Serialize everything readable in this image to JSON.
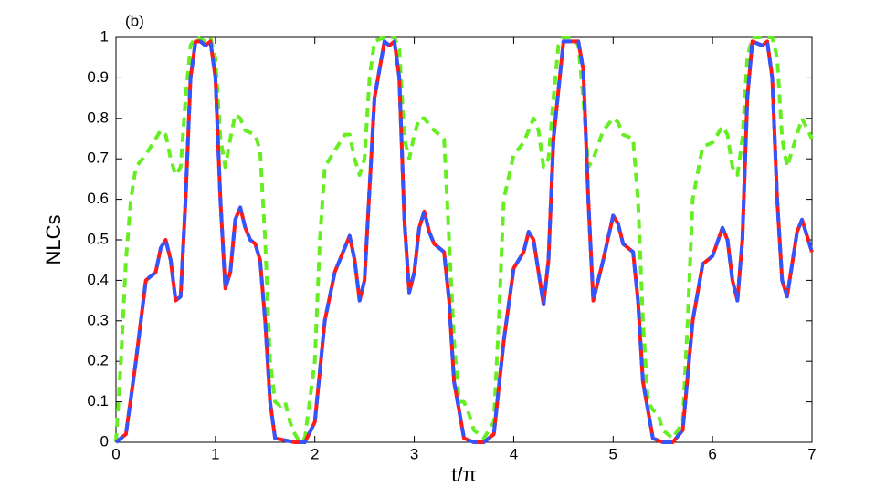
{
  "chart_data": {
    "type": "line",
    "annotation": "(b)",
    "xlabel": "t/π",
    "ylabel": "NLCs",
    "xlim": [
      0,
      7
    ],
    "xticks": [
      0,
      1,
      2,
      3,
      4,
      5,
      6,
      7
    ],
    "ylim": [
      0,
      1
    ],
    "yticks": [
      0,
      0.1,
      0.2,
      0.3,
      0.4,
      0.5,
      0.6,
      0.7,
      0.8,
      0.9,
      1
    ],
    "grid": false,
    "series": [
      {
        "color": "#ff1a1a",
        "dashed": false,
        "x": [
          0,
          0.1,
          0.2,
          0.3,
          0.4,
          0.45,
          0.5,
          0.55,
          0.6,
          0.65,
          0.7,
          0.75,
          0.8,
          0.85,
          0.9,
          0.95,
          1.0,
          1.05,
          1.1,
          1.15,
          1.2,
          1.25,
          1.3,
          1.35,
          1.4,
          1.45,
          1.5,
          1.55,
          1.6,
          1.7,
          1.8,
          1.9,
          2.0,
          2.1,
          2.2,
          2.3,
          2.35,
          2.4,
          2.45,
          2.5,
          2.6,
          2.7,
          2.75,
          2.8,
          2.85,
          2.9,
          2.95,
          3.0,
          3.05,
          3.1,
          3.15,
          3.2,
          3.3,
          3.35,
          3.4,
          3.5,
          3.6,
          3.7,
          3.8,
          3.9,
          4.0,
          4.1,
          4.15,
          4.2,
          4.3,
          4.35,
          4.4,
          4.5,
          4.6,
          4.65,
          4.7,
          4.75,
          4.8,
          4.9,
          5.0,
          5.05,
          5.1,
          5.2,
          5.25,
          5.3,
          5.4,
          5.5,
          5.6,
          5.7,
          5.8,
          5.9,
          6.0,
          6.1,
          6.15,
          6.2,
          6.25,
          6.3,
          6.35,
          6.4,
          6.5,
          6.55,
          6.6,
          6.65,
          6.7,
          6.75,
          6.85,
          6.9,
          7.0
        ],
        "values": [
          0,
          0.02,
          0.2,
          0.4,
          0.42,
          0.48,
          0.5,
          0.45,
          0.35,
          0.36,
          0.6,
          0.9,
          0.99,
          0.99,
          0.98,
          0.99,
          0.9,
          0.6,
          0.38,
          0.42,
          0.55,
          0.58,
          0.53,
          0.5,
          0.49,
          0.45,
          0.3,
          0.1,
          0.01,
          0.005,
          0,
          0,
          0.05,
          0.3,
          0.42,
          0.48,
          0.51,
          0.45,
          0.35,
          0.4,
          0.85,
          0.99,
          0.98,
          0.99,
          0.9,
          0.55,
          0.37,
          0.42,
          0.53,
          0.57,
          0.52,
          0.49,
          0.47,
          0.35,
          0.15,
          0.01,
          0,
          0,
          0.02,
          0.25,
          0.43,
          0.47,
          0.52,
          0.5,
          0.34,
          0.45,
          0.75,
          0.99,
          0.99,
          0.99,
          0.92,
          0.6,
          0.35,
          0.45,
          0.56,
          0.54,
          0.49,
          0.47,
          0.35,
          0.15,
          0.01,
          0,
          0,
          0.03,
          0.3,
          0.44,
          0.46,
          0.53,
          0.5,
          0.4,
          0.35,
          0.5,
          0.85,
          0.99,
          0.98,
          0.99,
          0.9,
          0.6,
          0.4,
          0.36,
          0.52,
          0.55,
          0.47
        ]
      },
      {
        "color": "#3355ff",
        "dashed": true,
        "x": [
          0,
          0.1,
          0.2,
          0.3,
          0.4,
          0.45,
          0.5,
          0.55,
          0.6,
          0.65,
          0.7,
          0.75,
          0.8,
          0.85,
          0.9,
          0.95,
          1.0,
          1.05,
          1.1,
          1.15,
          1.2,
          1.25,
          1.3,
          1.35,
          1.4,
          1.45,
          1.5,
          1.55,
          1.6,
          1.7,
          1.8,
          1.9,
          2.0,
          2.1,
          2.2,
          2.3,
          2.35,
          2.4,
          2.45,
          2.5,
          2.6,
          2.7,
          2.75,
          2.8,
          2.85,
          2.9,
          2.95,
          3.0,
          3.05,
          3.1,
          3.15,
          3.2,
          3.3,
          3.35,
          3.4,
          3.5,
          3.6,
          3.7,
          3.8,
          3.9,
          4.0,
          4.1,
          4.15,
          4.2,
          4.3,
          4.35,
          4.4,
          4.5,
          4.6,
          4.65,
          4.7,
          4.75,
          4.8,
          4.9,
          5.0,
          5.05,
          5.1,
          5.2,
          5.25,
          5.3,
          5.4,
          5.5,
          5.6,
          5.7,
          5.8,
          5.9,
          6.0,
          6.1,
          6.15,
          6.2,
          6.25,
          6.3,
          6.35,
          6.4,
          6.5,
          6.55,
          6.6,
          6.65,
          6.7,
          6.75,
          6.85,
          6.9,
          7.0
        ],
        "values": [
          0,
          0.02,
          0.2,
          0.4,
          0.42,
          0.48,
          0.5,
          0.45,
          0.35,
          0.36,
          0.6,
          0.9,
          0.99,
          0.99,
          0.98,
          0.99,
          0.9,
          0.6,
          0.38,
          0.42,
          0.55,
          0.58,
          0.53,
          0.5,
          0.49,
          0.45,
          0.3,
          0.1,
          0.01,
          0.005,
          0,
          0,
          0.05,
          0.3,
          0.42,
          0.48,
          0.51,
          0.45,
          0.35,
          0.4,
          0.85,
          0.99,
          0.98,
          0.99,
          0.9,
          0.55,
          0.37,
          0.42,
          0.53,
          0.57,
          0.52,
          0.49,
          0.47,
          0.35,
          0.15,
          0.01,
          0,
          0,
          0.02,
          0.25,
          0.43,
          0.47,
          0.52,
          0.5,
          0.34,
          0.45,
          0.75,
          0.99,
          0.99,
          0.99,
          0.92,
          0.6,
          0.35,
          0.45,
          0.56,
          0.54,
          0.49,
          0.47,
          0.35,
          0.15,
          0.01,
          0,
          0,
          0.03,
          0.3,
          0.44,
          0.46,
          0.53,
          0.5,
          0.4,
          0.35,
          0.5,
          0.85,
          0.99,
          0.98,
          0.99,
          0.9,
          0.6,
          0.4,
          0.36,
          0.52,
          0.55,
          0.47
        ]
      },
      {
        "color": "#66ee22",
        "dashed": true,
        "x": [
          0,
          0.05,
          0.1,
          0.15,
          0.2,
          0.3,
          0.4,
          0.45,
          0.5,
          0.55,
          0.6,
          0.65,
          0.7,
          0.75,
          0.8,
          0.9,
          0.95,
          1.0,
          1.05,
          1.1,
          1.15,
          1.2,
          1.25,
          1.3,
          1.4,
          1.45,
          1.5,
          1.55,
          1.6,
          1.65,
          1.7,
          1.75,
          1.8,
          1.85,
          1.9,
          2.0,
          2.05,
          2.1,
          2.2,
          2.3,
          2.35,
          2.4,
          2.45,
          2.5,
          2.55,
          2.6,
          2.7,
          2.8,
          2.85,
          2.9,
          2.95,
          3.0,
          3.05,
          3.1,
          3.2,
          3.3,
          3.35,
          3.4,
          3.45,
          3.5,
          3.55,
          3.6,
          3.7,
          3.8,
          3.85,
          3.9,
          4.0,
          4.1,
          4.2,
          4.25,
          4.3,
          4.35,
          4.4,
          4.45,
          4.5,
          4.6,
          4.65,
          4.7,
          4.75,
          4.8,
          4.9,
          5.0,
          5.05,
          5.1,
          5.2,
          5.25,
          5.3,
          5.35,
          5.4,
          5.45,
          5.5,
          5.6,
          5.7,
          5.75,
          5.8,
          5.9,
          6.0,
          6.1,
          6.15,
          6.2,
          6.25,
          6.3,
          6.35,
          6.4,
          6.5,
          6.6,
          6.65,
          6.7,
          6.75,
          6.8,
          6.9,
          7.0
        ],
        "values": [
          0,
          0.2,
          0.45,
          0.6,
          0.68,
          0.71,
          0.75,
          0.77,
          0.76,
          0.7,
          0.66,
          0.68,
          0.85,
          0.98,
          1,
          0.99,
          1,
          0.95,
          0.75,
          0.68,
          0.75,
          0.81,
          0.8,
          0.77,
          0.76,
          0.72,
          0.5,
          0.2,
          0.1,
          0.09,
          0.1,
          0.05,
          0.02,
          0,
          0.01,
          0.2,
          0.5,
          0.68,
          0.72,
          0.76,
          0.76,
          0.7,
          0.66,
          0.7,
          0.9,
          0.99,
          1,
          1,
          0.97,
          0.75,
          0.7,
          0.76,
          0.8,
          0.8,
          0.77,
          0.75,
          0.5,
          0.25,
          0.1,
          0.1,
          0.07,
          0.03,
          0.01,
          0.05,
          0.3,
          0.6,
          0.71,
          0.74,
          0.8,
          0.77,
          0.68,
          0.7,
          0.85,
          0.98,
          1,
          1,
          0.98,
          0.85,
          0.68,
          0.7,
          0.77,
          0.8,
          0.79,
          0.76,
          0.75,
          0.6,
          0.3,
          0.1,
          0.08,
          0.07,
          0.03,
          0.01,
          0.05,
          0.3,
          0.6,
          0.73,
          0.74,
          0.78,
          0.76,
          0.68,
          0.66,
          0.75,
          0.95,
          1,
          1,
          1,
          0.95,
          0.75,
          0.68,
          0.72,
          0.8,
          0.75
        ]
      }
    ]
  }
}
